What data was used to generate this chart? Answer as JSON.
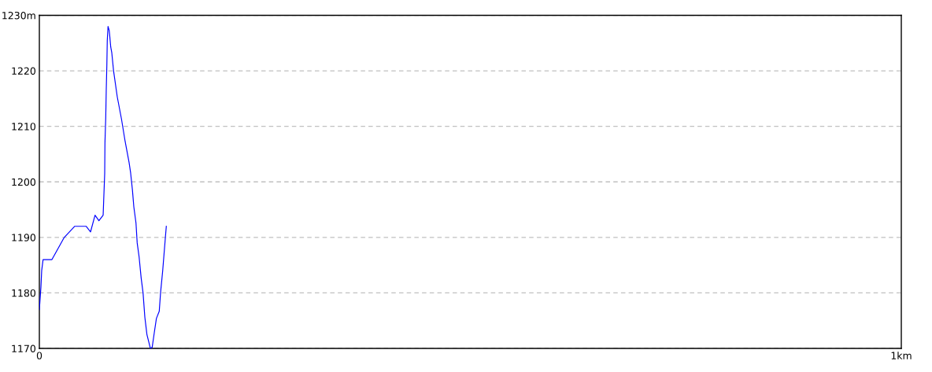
{
  "chart_data": {
    "type": "line",
    "x": [
      0,
      0.0018,
      0.0027,
      0.0043,
      0.0146,
      0.0289,
      0.0411,
      0.0542,
      0.0594,
      0.0646,
      0.0691,
      0.074,
      0.0746,
      0.0758,
      0.0761,
      0.077,
      0.0776,
      0.0783,
      0.0788,
      0.0797,
      0.081,
      0.0816,
      0.0828,
      0.084,
      0.0861,
      0.0904,
      0.0953,
      0.0995,
      0.1041,
      0.1059,
      0.108,
      0.1096,
      0.1121,
      0.1135,
      0.1157,
      0.1181,
      0.1203,
      0.1224,
      0.1248,
      0.1272,
      0.1288,
      0.1309,
      0.1333,
      0.1358,
      0.1391,
      0.1406,
      0.1431,
      0.1461,
      0.1473
    ],
    "series": [
      {
        "color": "#0000ff",
        "values": [
          1177,
          1181,
          1184,
          1186,
          1186,
          1190,
          1192,
          1192,
          1191,
          1194,
          1193,
          1194,
          1196.5,
          1201.5,
          1207,
          1211.5,
          1216.5,
          1221,
          1225.5,
          1228,
          1227.3,
          1226.4,
          1224.3,
          1223.3,
          1220,
          1215.3,
          1211.3,
          1207.3,
          1203.5,
          1201.6,
          1198.5,
          1195.5,
          1192.6,
          1189,
          1186.5,
          1182.7,
          1180,
          1175.6,
          1172.5,
          1171,
          1170,
          1170.2,
          1172.8,
          1175.4,
          1176.7,
          1180,
          1184,
          1189.8,
          1192
        ]
      }
    ],
    "xlim": [
      0,
      1
    ],
    "xticks": [
      0,
      {
        "value": 1,
        "label": "1km"
      }
    ],
    "ylim": [
      1170,
      1230
    ],
    "yticks": [
      1170,
      1180,
      1190,
      1200,
      1210,
      1220,
      {
        "value": 1230,
        "label": "1230m"
      }
    ],
    "grid": "y",
    "line_style": "solid"
  }
}
